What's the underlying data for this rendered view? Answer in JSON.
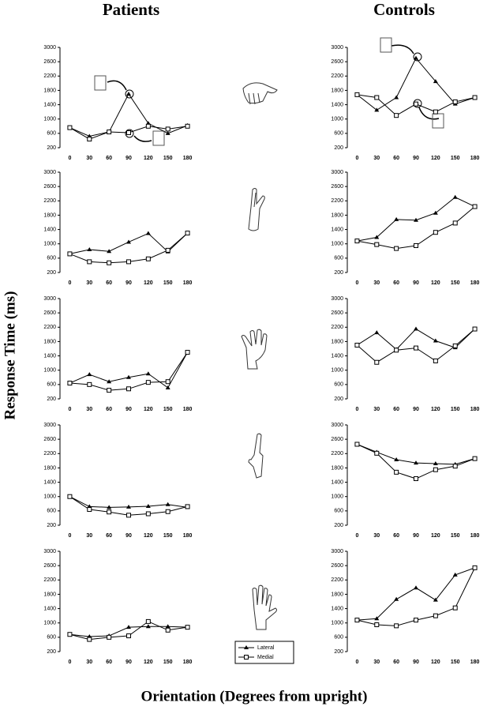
{
  "column_titles": [
    "Patients",
    "Controls"
  ],
  "ylabel": "Response Time (ms)",
  "xlabel": "Orientation (Degrees from upright)",
  "chart_data": [
    {
      "type": "line",
      "categories": [
        "0",
        "30",
        "60",
        "90",
        "120",
        "150",
        "180"
      ],
      "ylim": [
        200,
        3000
      ],
      "yticks": [
        200,
        600,
        1000,
        1400,
        1800,
        2200,
        2600,
        3000
      ],
      "series": [
        {
          "name": "Lateral",
          "color": "#000000",
          "marker": "triangle",
          "values": [
            760,
            520,
            640,
            1700,
            880,
            600,
            820
          ]
        },
        {
          "name": "Medial",
          "color": "#000000",
          "marker": "square",
          "values": [
            760,
            440,
            640,
            620,
            800,
            720,
            800
          ]
        }
      ]
    },
    {
      "type": "line",
      "categories": [
        "0",
        "30",
        "60",
        "90",
        "120",
        "150",
        "180"
      ],
      "ylim": [
        200,
        3000
      ],
      "yticks": [
        200,
        600,
        1000,
        1400,
        1800,
        2200,
        2600,
        3000
      ],
      "series": [
        {
          "name": "Lateral",
          "color": "#000000",
          "marker": "triangle",
          "values": [
            1680,
            1250,
            1600,
            2700,
            2050,
            1420,
            1600
          ]
        },
        {
          "name": "Medial",
          "color": "#000000",
          "marker": "square",
          "values": [
            1680,
            1600,
            1100,
            1420,
            1200,
            1480,
            1600
          ]
        }
      ]
    },
    {
      "type": "line",
      "categories": [
        "0",
        "30",
        "60",
        "90",
        "120",
        "150",
        "180"
      ],
      "ylim": [
        200,
        3000
      ],
      "yticks": [
        200,
        600,
        1000,
        1400,
        1800,
        2200,
        2600,
        3000
      ],
      "series": [
        {
          "name": "Lateral",
          "color": "#000000",
          "marker": "triangle",
          "values": [
            720,
            840,
            790,
            1050,
            1290,
            780,
            1300
          ]
        },
        {
          "name": "Medial",
          "color": "#000000",
          "marker": "square",
          "values": [
            720,
            500,
            470,
            500,
            580,
            820,
            1300
          ]
        }
      ]
    },
    {
      "type": "line",
      "categories": [
        "0",
        "30",
        "60",
        "90",
        "120",
        "150",
        "180"
      ],
      "ylim": [
        200,
        3000
      ],
      "yticks": [
        200,
        600,
        1000,
        1400,
        1800,
        2200,
        2600,
        3000
      ],
      "series": [
        {
          "name": "Lateral",
          "color": "#000000",
          "marker": "triangle",
          "values": [
            1080,
            1180,
            1680,
            1660,
            1860,
            2300,
            2040
          ]
        },
        {
          "name": "Medial",
          "color": "#000000",
          "marker": "square",
          "values": [
            1080,
            980,
            870,
            950,
            1320,
            1580,
            2040
          ]
        }
      ]
    },
    {
      "type": "line",
      "categories": [
        "0",
        "30",
        "60",
        "90",
        "120",
        "150",
        "180"
      ],
      "ylim": [
        200,
        3000
      ],
      "yticks": [
        200,
        600,
        1000,
        1400,
        1800,
        2200,
        2600,
        3000
      ],
      "series": [
        {
          "name": "Lateral",
          "color": "#000000",
          "marker": "triangle",
          "values": [
            640,
            880,
            680,
            800,
            900,
            510,
            1500
          ]
        },
        {
          "name": "Medial",
          "color": "#000000",
          "marker": "square",
          "values": [
            640,
            600,
            440,
            480,
            660,
            680,
            1500
          ]
        }
      ]
    },
    {
      "type": "line",
      "categories": [
        "0",
        "30",
        "60",
        "90",
        "120",
        "150",
        "180"
      ],
      "ylim": [
        200,
        3000
      ],
      "yticks": [
        200,
        600,
        1000,
        1400,
        1800,
        2200,
        2600,
        3000
      ],
      "series": [
        {
          "name": "Lateral",
          "color": "#000000",
          "marker": "triangle",
          "values": [
            1700,
            2050,
            1580,
            2150,
            1820,
            1630,
            2150
          ]
        },
        {
          "name": "Medial",
          "color": "#000000",
          "marker": "square",
          "values": [
            1700,
            1220,
            1560,
            1620,
            1260,
            1680,
            2150
          ]
        }
      ]
    },
    {
      "type": "line",
      "categories": [
        "0",
        "30",
        "60",
        "90",
        "120",
        "150",
        "180"
      ],
      "ylim": [
        200,
        3000
      ],
      "yticks": [
        200,
        600,
        1000,
        1400,
        1800,
        2200,
        2600,
        3000
      ],
      "series": [
        {
          "name": "Lateral",
          "color": "#000000",
          "marker": "triangle",
          "values": [
            1000,
            720,
            700,
            710,
            730,
            780,
            700
          ]
        },
        {
          "name": "Medial",
          "color": "#000000",
          "marker": "square",
          "values": [
            1000,
            640,
            570,
            480,
            520,
            580,
            720
          ]
        }
      ]
    },
    {
      "type": "line",
      "categories": [
        "0",
        "30",
        "60",
        "90",
        "120",
        "150",
        "180"
      ],
      "ylim": [
        200,
        3000
      ],
      "yticks": [
        200,
        600,
        1000,
        1400,
        1800,
        2200,
        2600,
        3000
      ],
      "series": [
        {
          "name": "Lateral",
          "color": "#000000",
          "marker": "triangle",
          "values": [
            2460,
            2240,
            2030,
            1940,
            1920,
            1900,
            2060
          ]
        },
        {
          "name": "Medial",
          "color": "#000000",
          "marker": "square",
          "values": [
            2460,
            2210,
            1680,
            1500,
            1750,
            1850,
            2060
          ]
        }
      ]
    },
    {
      "type": "line",
      "categories": [
        "0",
        "30",
        "60",
        "90",
        "120",
        "150",
        "180"
      ],
      "ylim": [
        200,
        3000
      ],
      "yticks": [
        200,
        600,
        1000,
        1400,
        1800,
        2200,
        2600,
        3000
      ],
      "series": [
        {
          "name": "Lateral",
          "color": "#000000",
          "marker": "triangle",
          "values": [
            680,
            620,
            640,
            880,
            900,
            900,
            880
          ]
        },
        {
          "name": "Medial",
          "color": "#000000",
          "marker": "square",
          "values": [
            680,
            540,
            600,
            640,
            1040,
            800,
            880
          ]
        }
      ]
    },
    {
      "type": "line",
      "categories": [
        "0",
        "30",
        "60",
        "90",
        "120",
        "150",
        "180"
      ],
      "ylim": [
        200,
        3000
      ],
      "yticks": [
        200,
        600,
        1000,
        1400,
        1800,
        2200,
        2600,
        3000
      ],
      "series": [
        {
          "name": "Lateral",
          "color": "#000000",
          "marker": "triangle",
          "values": [
            1080,
            1120,
            1660,
            1980,
            1640,
            2340,
            2540
          ]
        },
        {
          "name": "Medial",
          "color": "#000000",
          "marker": "square",
          "values": [
            1080,
            950,
            920,
            1080,
            1200,
            1420,
            2540
          ]
        }
      ]
    }
  ]
}
